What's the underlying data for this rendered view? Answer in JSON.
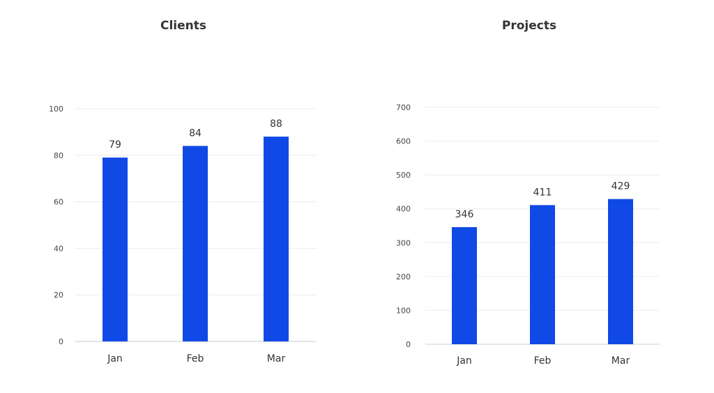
{
  "colors": {
    "bar": "#1049e6"
  },
  "chart_data": [
    {
      "type": "bar",
      "title": "Clients",
      "categories": [
        "Jan",
        "Feb",
        "Mar"
      ],
      "values": [
        79,
        84,
        88
      ],
      "data_labels": [
        "79",
        "84",
        "88"
      ],
      "ylim": [
        0,
        100
      ],
      "yticks": [
        "0",
        "20",
        "40",
        "60",
        "80",
        "100"
      ],
      "xlabel": "",
      "ylabel": "",
      "grid": true
    },
    {
      "type": "bar",
      "title": "Projects",
      "categories": [
        "Jan",
        "Feb",
        "Mar"
      ],
      "values": [
        346,
        411,
        429
      ],
      "data_labels": [
        "346",
        "411",
        "429"
      ],
      "ylim": [
        0,
        700
      ],
      "yticks": [
        "0",
        "100",
        "200",
        "300",
        "400",
        "500",
        "600",
        "700"
      ],
      "xlabel": "",
      "ylabel": "",
      "grid": true
    }
  ]
}
